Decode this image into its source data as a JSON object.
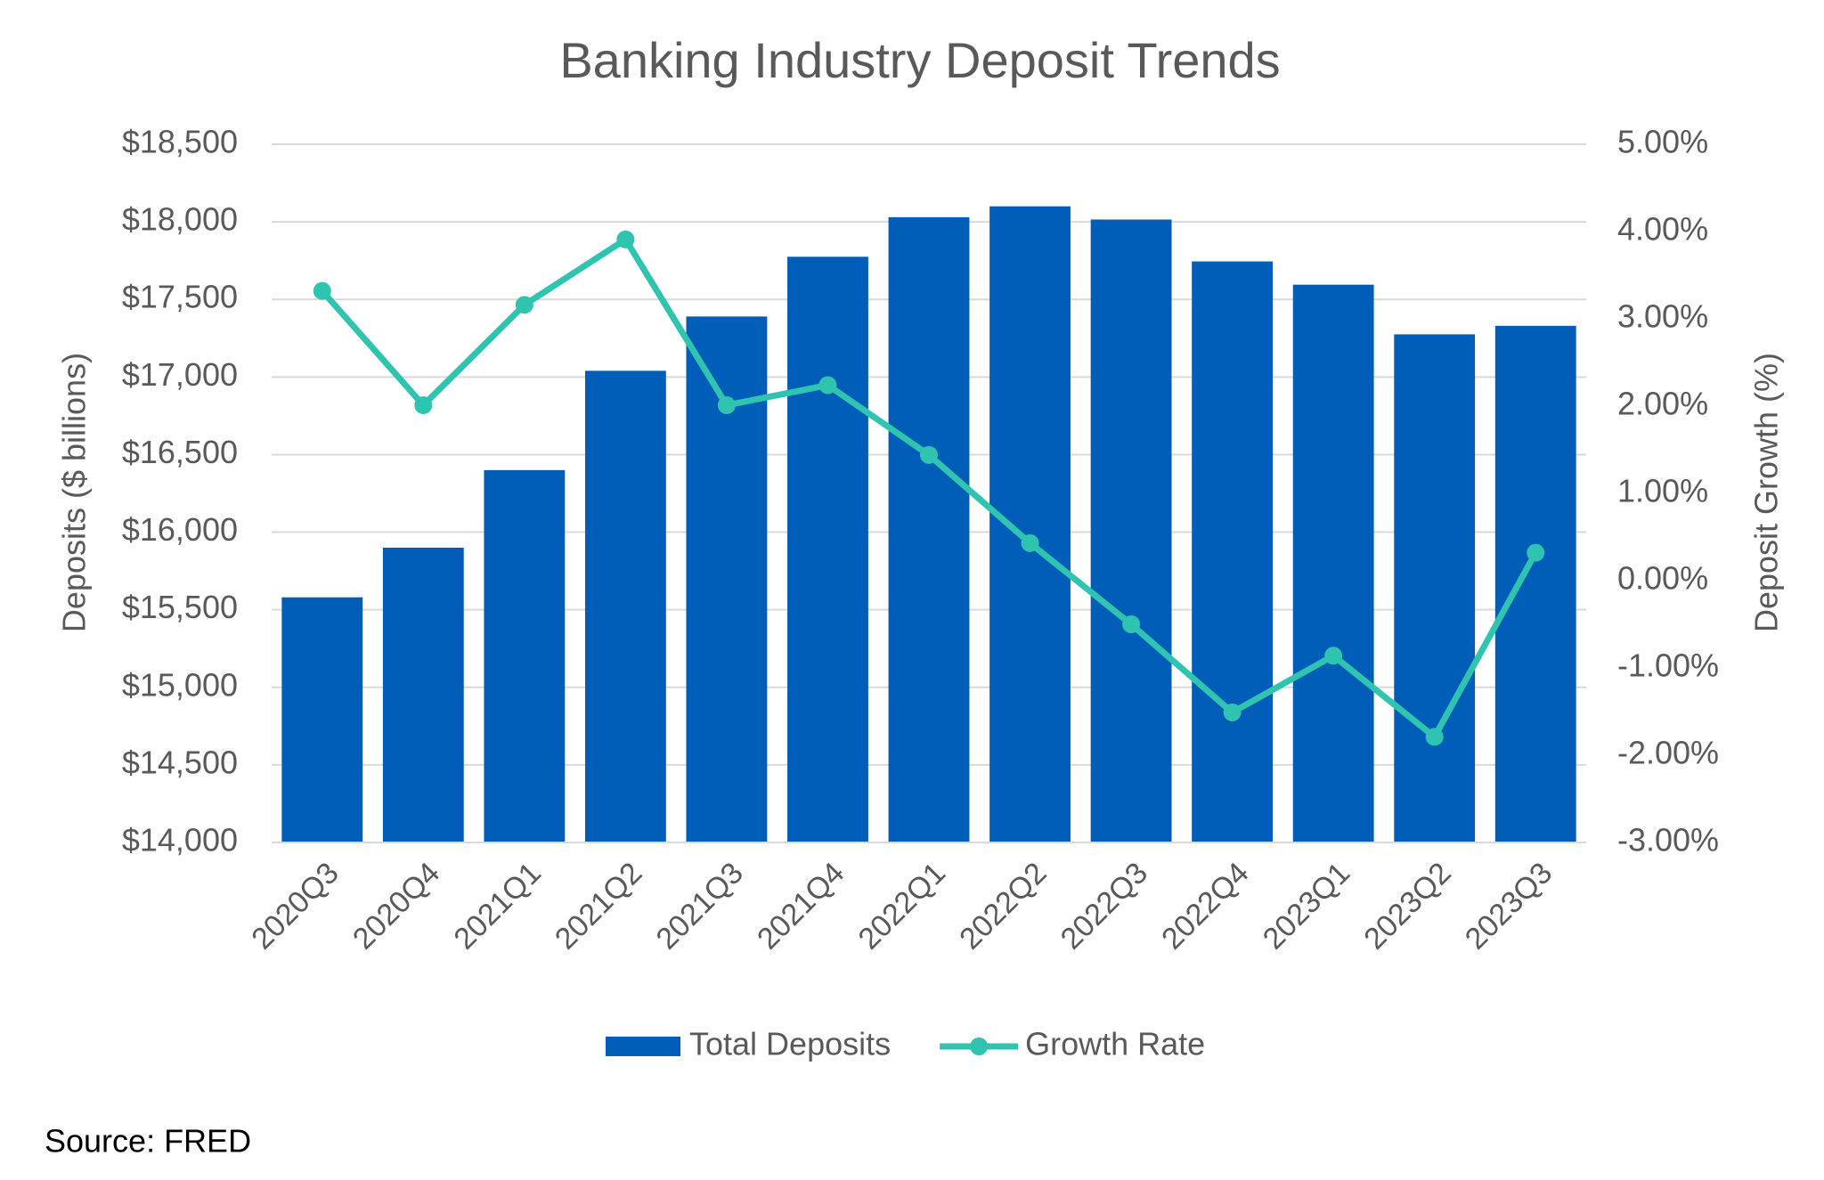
{
  "chart_data": {
    "type": "bar+line",
    "title": "Banking Industry Deposit Trends",
    "y_label": "Deposits ($ billions)",
    "y2_label": "Deposit Growth (%)",
    "source": "Source: FRED",
    "categories": [
      "2020Q3",
      "2020Q4",
      "2021Q1",
      "2021Q2",
      "2021Q3",
      "2021Q4",
      "2022Q1",
      "2022Q2",
      "2022Q3",
      "2022Q4",
      "2023Q1",
      "2023Q2",
      "2023Q3"
    ],
    "series": [
      {
        "name": "Total Deposits",
        "type": "bar",
        "color": "#005EB8",
        "axis": "y",
        "values": [
          15580,
          15900,
          16400,
          17040,
          17390,
          17775,
          18030,
          18100,
          18015,
          17745,
          17595,
          17275,
          17330
        ]
      },
      {
        "name": "Growth Rate",
        "type": "line",
        "color": "#2EC4B0",
        "axis": "y2",
        "values": [
          3.32,
          2.01,
          3.16,
          3.91,
          2.01,
          2.24,
          1.44,
          0.43,
          -0.5,
          -1.51,
          -0.86,
          -1.79,
          0.32
        ]
      }
    ],
    "ylim": [
      14000,
      18500
    ],
    "yticks": [
      {
        "value": 14000,
        "label": "$14,000"
      },
      {
        "value": 14500,
        "label": "$14,500"
      },
      {
        "value": 15000,
        "label": "$15,000"
      },
      {
        "value": 15500,
        "label": "$15,500"
      },
      {
        "value": 16000,
        "label": "$16,000"
      },
      {
        "value": 16500,
        "label": "$16,500"
      },
      {
        "value": 17000,
        "label": "$17,000"
      },
      {
        "value": 17500,
        "label": "$17,500"
      },
      {
        "value": 18000,
        "label": "$18,000"
      },
      {
        "value": 18500,
        "label": "$18,500"
      }
    ],
    "y2lim": [
      -3,
      5
    ],
    "y2ticks": [
      {
        "value": -3,
        "label": "-3.00%"
      },
      {
        "value": -2,
        "label": "-2.00%"
      },
      {
        "value": -1,
        "label": "-1.00%"
      },
      {
        "value": 0,
        "label": "0.00%"
      },
      {
        "value": 1,
        "label": "1.00%"
      },
      {
        "value": 2,
        "label": "2.00%"
      },
      {
        "value": 3,
        "label": "3.00%"
      },
      {
        "value": 4,
        "label": "4.00%"
      },
      {
        "value": 5,
        "label": "5.00%"
      }
    ],
    "grid": true,
    "legend": "bottom"
  }
}
